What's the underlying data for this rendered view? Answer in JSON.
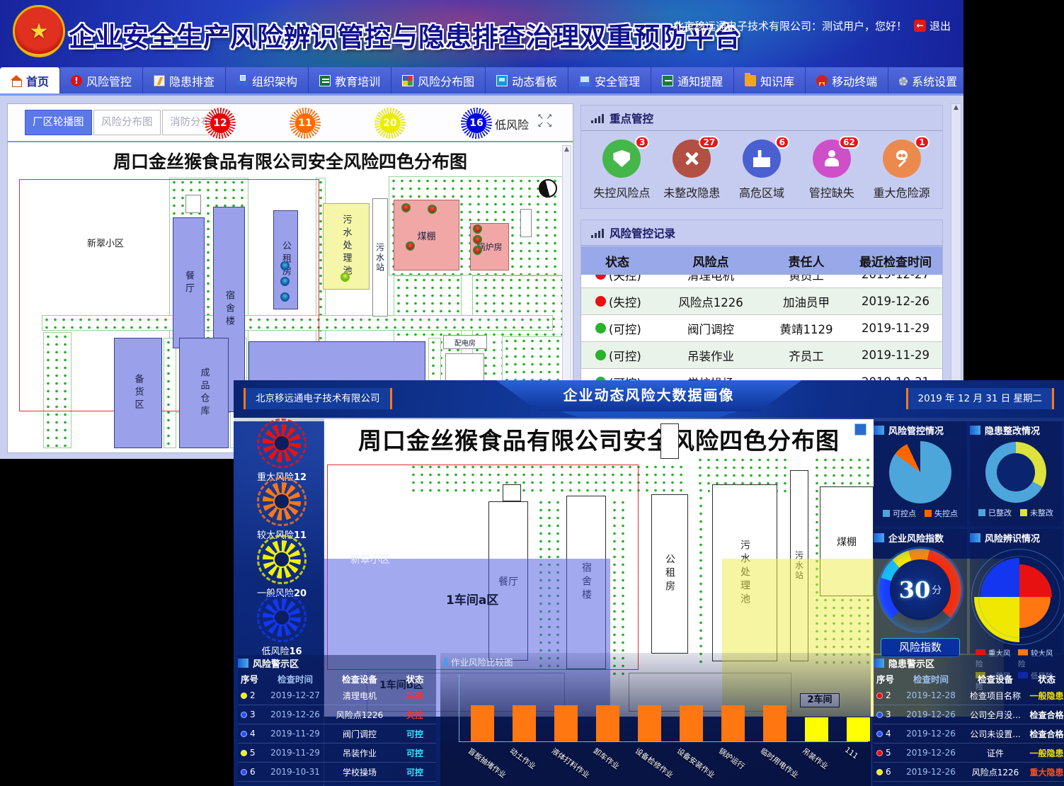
{
  "main_window": {
    "title": "企业安全生产风险辨识管控与隐患排查治理双重预防平台",
    "user_info": "北京移远通电子技术有限公司：测试用户，您好！",
    "logout_label": "退出",
    "nav": [
      {
        "label": "首页"
      },
      {
        "label": "风险管控"
      },
      {
        "label": "隐患排查"
      },
      {
        "label": "组织架构"
      },
      {
        "label": "教育培训"
      },
      {
        "label": "风险分布图"
      },
      {
        "label": "动态看板"
      },
      {
        "label": "安全管理"
      },
      {
        "label": "通知提醒"
      },
      {
        "label": "知识库"
      },
      {
        "label": "移动终端"
      },
      {
        "label": "系统设置"
      }
    ],
    "left_panel": {
      "tabs": [
        {
          "label": "厂区轮播图"
        },
        {
          "label": "风险分布图"
        },
        {
          "label": "消防分布图"
        }
      ],
      "badges": [
        {
          "value": "12",
          "color": "#e60000"
        },
        {
          "value": "11",
          "color": "#ff6a00"
        },
        {
          "value": "20",
          "color": "#ecec00"
        },
        {
          "value": "16",
          "color": "#0008dd",
          "label": "低风险"
        }
      ],
      "map_title": "周口金丝猴食品有限公司安全风险四色分布图"
    },
    "map_labels": {
      "xincui": "新翠小区",
      "canting": "餐厅",
      "sushe": "宿舍楼",
      "gongzu": "公租房",
      "chuli": "污水处理池",
      "wushuizhan": "污水站",
      "meipeng": "煤棚",
      "guolu": "锅炉房",
      "peidian": "配电房",
      "beihuo": "备货区",
      "chengpin": "成品仓库"
    },
    "key_control": {
      "title": "重点管控",
      "items": [
        {
          "label": "失控风险点",
          "count": "3",
          "color": "#45b649"
        },
        {
          "label": "未整改隐患",
          "count": "27",
          "color": "#b25043"
        },
        {
          "label": "高危区域",
          "count": "6",
          "color": "#4a5fd0"
        },
        {
          "label": "管控缺失",
          "count": "62",
          "color": "#cf4fc8"
        },
        {
          "label": "重大危险源",
          "count": "1",
          "color": "#ec8a4e"
        }
      ]
    },
    "risk_records": {
      "title": "风险管控记录",
      "headers": [
        "状态",
        "风险点",
        "责任人",
        "最近检查时间"
      ],
      "rows": [
        {
          "dot": "#e81010",
          "status": "(失控)",
          "point": "清理电机",
          "person": "黄员工",
          "date": "2019-12-27"
        },
        {
          "dot": "#e81010",
          "status": "(失控)",
          "point": "风险点1226",
          "person": "加油员甲",
          "date": "2019-12-26"
        },
        {
          "dot": "#28b428",
          "status": "(可控)",
          "point": "阀门调控",
          "person": "黄靖1129",
          "date": "2019-11-29"
        },
        {
          "dot": "#28b428",
          "status": "(可控)",
          "point": "吊装作业",
          "person": "齐员工",
          "date": "2019-11-29"
        },
        {
          "dot": "#28b428",
          "status": "(可控)",
          "point": "学校操场",
          "person": "",
          "date": "2019-10-31"
        }
      ]
    }
  },
  "dashboard": {
    "header": {
      "company": "北京移远通电子技术有限公司",
      "title": "企业动态风险大数据画像",
      "date": "2019 年 12 月 31 日 星期二"
    },
    "risk_summary": [
      {
        "label": "重大风险",
        "value": "12",
        "color": "#e81111"
      },
      {
        "label": "较大风险",
        "value": "11",
        "color": "#ff7711"
      },
      {
        "label": "一般风险",
        "value": "20",
        "color": "#f0f000"
      },
      {
        "label": "低风险",
        "value": "16",
        "color": "#1536f0"
      }
    ],
    "map_title": "周口金丝猴食品有限公司安全风险四色分布图",
    "zone_labels": {
      "ws1a": "1车间a区",
      "ws1b": "1车间b区",
      "ws2": "2车间"
    },
    "panels": {
      "risk_control_title": "风险管控情况",
      "rectify_title": "隐患整改情况",
      "index_title": "企业风险指数",
      "index_unit": "分",
      "index_button": "风险指数",
      "identify_title": "风险辨识情况"
    },
    "chart_title": "作业风险比较图",
    "risk_alert": {
      "title": "风险警示区",
      "headers": [
        "序号",
        "检查时间",
        "检查设备",
        "状态"
      ],
      "rows": [
        {
          "no": "2",
          "dot": "#f0f000",
          "date": "2019-12-27",
          "device": "清理电机",
          "status": "失控",
          "status_color": "#ff3030"
        },
        {
          "no": "3",
          "dot": "#2a50ff",
          "date": "2019-12-26",
          "device": "风险点1226",
          "status": "失控",
          "status_color": "#ff3030"
        },
        {
          "no": "4",
          "dot": "#2a50ff",
          "date": "2019-11-29",
          "device": "阀门调控",
          "status": "可控",
          "status_color": "#35e6ff"
        },
        {
          "no": "5",
          "dot": "#f0f000",
          "date": "2019-11-29",
          "device": "吊装作业",
          "status": "可控",
          "status_color": "#35e6ff"
        },
        {
          "no": "6",
          "dot": "#2a50ff",
          "date": "2019-10-31",
          "device": "学校操场",
          "status": "可控",
          "status_color": "#35e6ff"
        }
      ],
      "legend": [
        {
          "label": "重大风险",
          "color": "#e81111"
        },
        {
          "label": "较大风险",
          "color": "#ff7711"
        },
        {
          "label": "一般风险",
          "color": "#f0f000"
        },
        {
          "label": "低风险",
          "color": "#1536f0"
        }
      ]
    },
    "hazard_alert": {
      "title": "隐患警示区",
      "headers": [
        "序号",
        "检查时间",
        "检查设备",
        "状态"
      ],
      "rows": [
        {
          "no": "2",
          "dot": "#e81111",
          "date": "2019-12-28",
          "device": "检查项目名称",
          "status": "一般隐患",
          "status_color": "#f0e000"
        },
        {
          "no": "3",
          "dot": "#2a50ff",
          "date": "2019-12-26",
          "device": "公司全月没...",
          "status": "检查合格",
          "status_color": "#ffffff"
        },
        {
          "no": "4",
          "dot": "#2a50ff",
          "date": "2019-12-26",
          "device": "公司未设置...",
          "status": "检查合格",
          "status_color": "#ffffff"
        },
        {
          "no": "5",
          "dot": "#e81111",
          "date": "2019-12-26",
          "device": "证件",
          "status": "一般隐患",
          "status_color": "#f0e000"
        },
        {
          "no": "6",
          "dot": "#f0f000",
          "date": "2019-12-26",
          "device": "风险点1226",
          "status": "重大隐患",
          "status_color": "#ff5020"
        }
      ],
      "legend": [
        {
          "label": "重大隐患",
          "color": "#ff7711"
        },
        {
          "label": "一般隐患",
          "color": "#f0e000"
        }
      ]
    }
  },
  "chart_data": [
    {
      "type": "bar",
      "title": "作业风险比较图",
      "categories": [
        "盲板抽堵作业",
        "动土作业",
        "液体打料作业",
        "卸车作业",
        "设备检修作业",
        "设备安装作业",
        "锅炉运行",
        "临时用电作业",
        "吊装作业",
        "111"
      ],
      "values": [
        3,
        3,
        3,
        3,
        3,
        3,
        3,
        3,
        2,
        2
      ],
      "colors": [
        "#ff7711",
        "#ff7711",
        "#ff7711",
        "#ff7711",
        "#ff7711",
        "#ff7711",
        "#ff7711",
        "#ff7711",
        "#ffff00",
        "#ffff00"
      ],
      "xlabel": "",
      "ylabel": "",
      "ylim": [
        0,
        4
      ],
      "grid": false,
      "legend_position": "none"
    },
    {
      "type": "pie",
      "title": "风险管控情况",
      "labels": [
        "可控点",
        "失控点"
      ],
      "values_pct": [
        85,
        8
      ],
      "colors": [
        "#4da6d9",
        "#ff6600"
      ],
      "legend_position": "bottom"
    },
    {
      "type": "pie",
      "subtype": "donut",
      "title": "隐患整改情况",
      "labels": [
        "已整改",
        "未整改"
      ],
      "values_pct": [
        67,
        33
      ],
      "colors": [
        "#4da6d9",
        "#dde23c"
      ],
      "legend_position": "bottom"
    },
    {
      "type": "gauge",
      "title": "企业风险指数",
      "value": "30",
      "max": 100,
      "unit": "分"
    },
    {
      "type": "pie",
      "subtype": "rose",
      "title": "风险辨识情况",
      "labels": [
        "重大风险",
        "较大风险",
        "一般风险",
        "低风险"
      ],
      "values": [
        12,
        11,
        20,
        16
      ],
      "colors": [
        "#e81111",
        "#ff7711",
        "#f0e800",
        "#1536f0"
      ],
      "legend_position": "bottom"
    }
  ]
}
